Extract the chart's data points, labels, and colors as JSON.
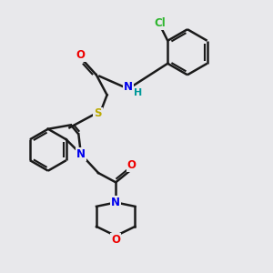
{
  "background_color": "#e8e8eb",
  "bond_color": "#1a1a1a",
  "bond_width": 1.8,
  "atoms": {
    "Cl": {
      "color": "#2db52d",
      "fontsize": 8.5
    },
    "O": {
      "color": "#ee0000",
      "fontsize": 8.5
    },
    "N": {
      "color": "#0000ee",
      "fontsize": 8.5
    },
    "S": {
      "color": "#bbaa00",
      "fontsize": 8.5
    },
    "H": {
      "color": "#009999",
      "fontsize": 8.0
    }
  },
  "figsize": [
    3.0,
    3.0
  ],
  "dpi": 100
}
